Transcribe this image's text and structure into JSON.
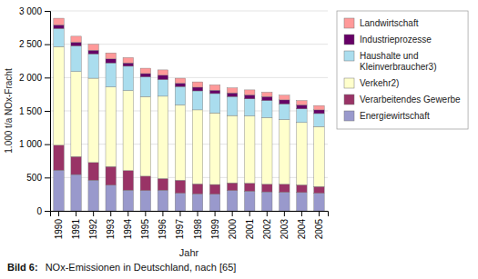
{
  "chart_data": {
    "type": "bar",
    "stacked": true,
    "categories": [
      "1990",
      "1991",
      "1992",
      "1993",
      "1994",
      "1995",
      "1996",
      "1997",
      "1998",
      "1999",
      "2000",
      "2001",
      "2002",
      "2003",
      "2004",
      "2005"
    ],
    "series": [
      {
        "name": "Energiewirtschaft",
        "color": "#9999cc",
        "values": [
          610,
          545,
          460,
          385,
          310,
          305,
          310,
          265,
          255,
          250,
          305,
          295,
          285,
          280,
          275,
          265
        ]
      },
      {
        "name": "Verarbeitendes Gewerbe",
        "color": "#993366",
        "values": [
          375,
          270,
          265,
          280,
          295,
          215,
          175,
          195,
          150,
          145,
          115,
          120,
          115,
          120,
          115,
          100
        ]
      },
      {
        "name": "Verkehr2)",
        "color": "#ffffcc",
        "values": [
          1480,
          1275,
          1265,
          1195,
          1200,
          1195,
          1235,
          1130,
          1110,
          1075,
          1010,
          1010,
          1000,
          970,
          935,
          900
        ]
      },
      {
        "name": "Haushalte und\nKleinverbraucher3)",
        "color": "#aaddee",
        "values": [
          270,
          385,
          365,
          360,
          365,
          295,
          250,
          275,
          285,
          290,
          285,
          255,
          255,
          235,
          205,
          195
        ]
      },
      {
        "name": "Industrieprozesse",
        "color": "#660066",
        "values": [
          55,
          55,
          55,
          60,
          50,
          50,
          65,
          50,
          55,
          50,
          55,
          60,
          60,
          60,
          60,
          55
        ]
      },
      {
        "name": "Landwirtschaft",
        "color": "#ff9999",
        "values": [
          100,
          90,
          90,
          90,
          80,
          80,
          80,
          75,
          80,
          80,
          75,
          75,
          65,
          70,
          65,
          65
        ]
      }
    ],
    "y_label": "1.000 t/a NOx-Fracht",
    "x_label": "Jahr",
    "ylim": [
      0,
      3000
    ],
    "yticks": [
      0,
      500,
      {
        "value": 1000,
        "label": "1 000"
      },
      {
        "value": 1500,
        "label": "1 500"
      },
      {
        "value": 2000,
        "label": "2 000"
      },
      {
        "value": 2500,
        "label": "2 500"
      },
      {
        "value": 3000,
        "label": "3 000"
      }
    ],
    "grid": true,
    "legend": "upper right",
    "annotations": [
      "Bild 6:",
      "NOx-Emissionen in Deutschland, nach [65]"
    ]
  }
}
